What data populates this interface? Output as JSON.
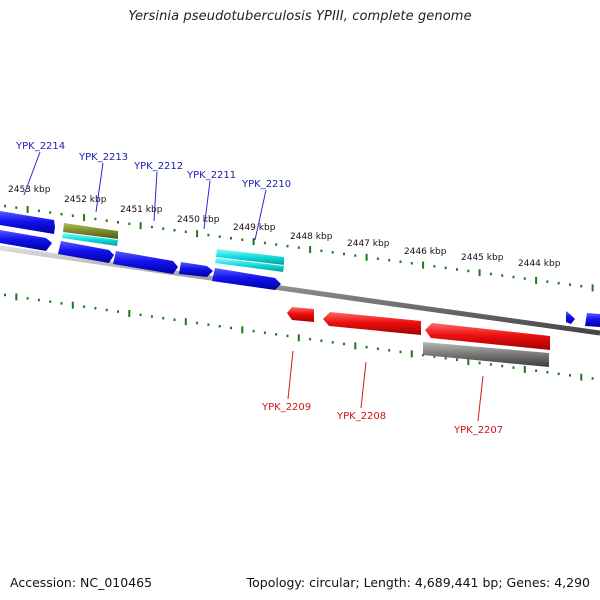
{
  "title": "Yersinia pseudotuberculosis YPIII, complete genome",
  "accession": "Accession: NC_010465",
  "stats": "Topology: circular; Length: 4,689,441 bp; Genes: 4,290",
  "colors": {
    "forward_gene": "#1010ee",
    "reverse_gene": "#ee1010",
    "forward_label": "#1a1ab0",
    "reverse_label": "#cc1515",
    "rna_cyan": "#10dddd",
    "rna_olive": "#7a8a2a",
    "pseudogene_gray": "#777777",
    "tick": "#1a7a1a",
    "backbone": "#888888"
  },
  "scale_labels": [
    "2453 kbp",
    "2452 kbp",
    "2451 kbp",
    "2450 kbp",
    "2449 kbp",
    "2448 kbp",
    "2447 kbp",
    "2446 kbp",
    "2445 kbp",
    "2444 kbp"
  ],
  "forward_gene_labels": [
    "YPK_2214",
    "YPK_2213",
    "YPK_2212",
    "YPK_2211",
    "YPK_2210"
  ],
  "reverse_gene_labels": [
    "YPK_2209",
    "YPK_2208",
    "YPK_2207"
  ]
}
